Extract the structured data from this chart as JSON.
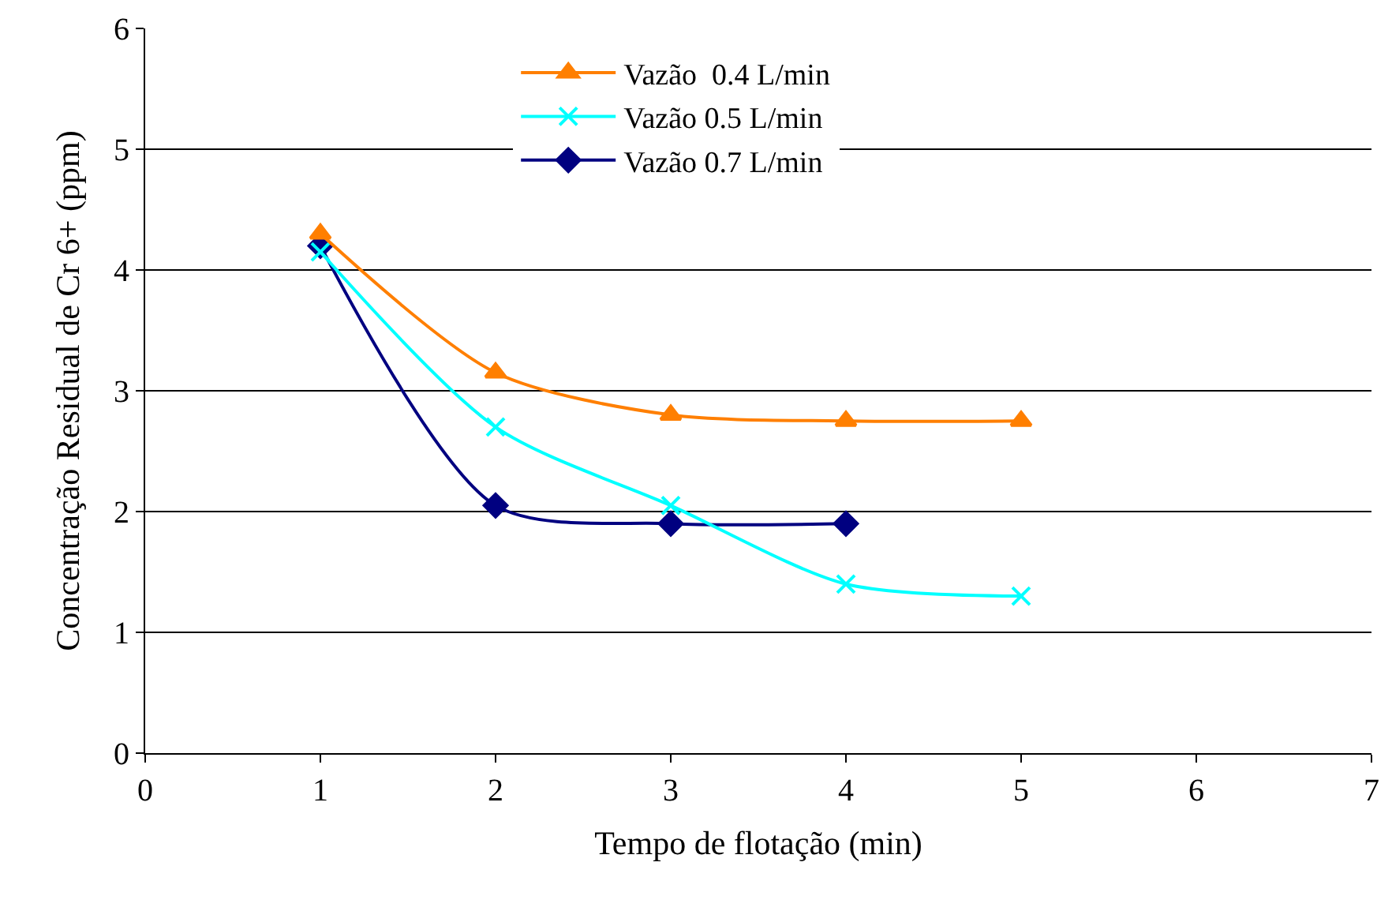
{
  "chart_data": {
    "type": "line",
    "xlabel": "Tempo de flotação (min)",
    "ylabel": "Concentração Residual de Cr 6+ (ppm)",
    "x": [
      1,
      2,
      3,
      4,
      5
    ],
    "series": [
      {
        "name": "Vazão  0.4 L/min",
        "color": "#ff7f00",
        "marker": "triangle",
        "values": [
          4.3,
          3.15,
          2.8,
          2.75,
          2.75
        ]
      },
      {
        "name": "Vazão 0.5 L/min",
        "color": "#00ffff",
        "marker": "cross",
        "values": [
          4.15,
          2.7,
          2.05,
          1.4,
          1.3
        ]
      },
      {
        "name": "Vazão 0.7 L/min",
        "color": "#000080",
        "marker": "diamond",
        "values": [
          4.2,
          2.05,
          1.9,
          1.9,
          null
        ]
      }
    ],
    "xlim": [
      0,
      7
    ],
    "xticks": [
      0,
      1,
      2,
      3,
      4,
      5,
      6,
      7
    ],
    "ylim": [
      0,
      6
    ],
    "yticks": [
      0,
      1,
      2,
      3,
      4,
      5,
      6
    ],
    "grid": "y",
    "legend": "top",
    "line_style": "solid"
  }
}
